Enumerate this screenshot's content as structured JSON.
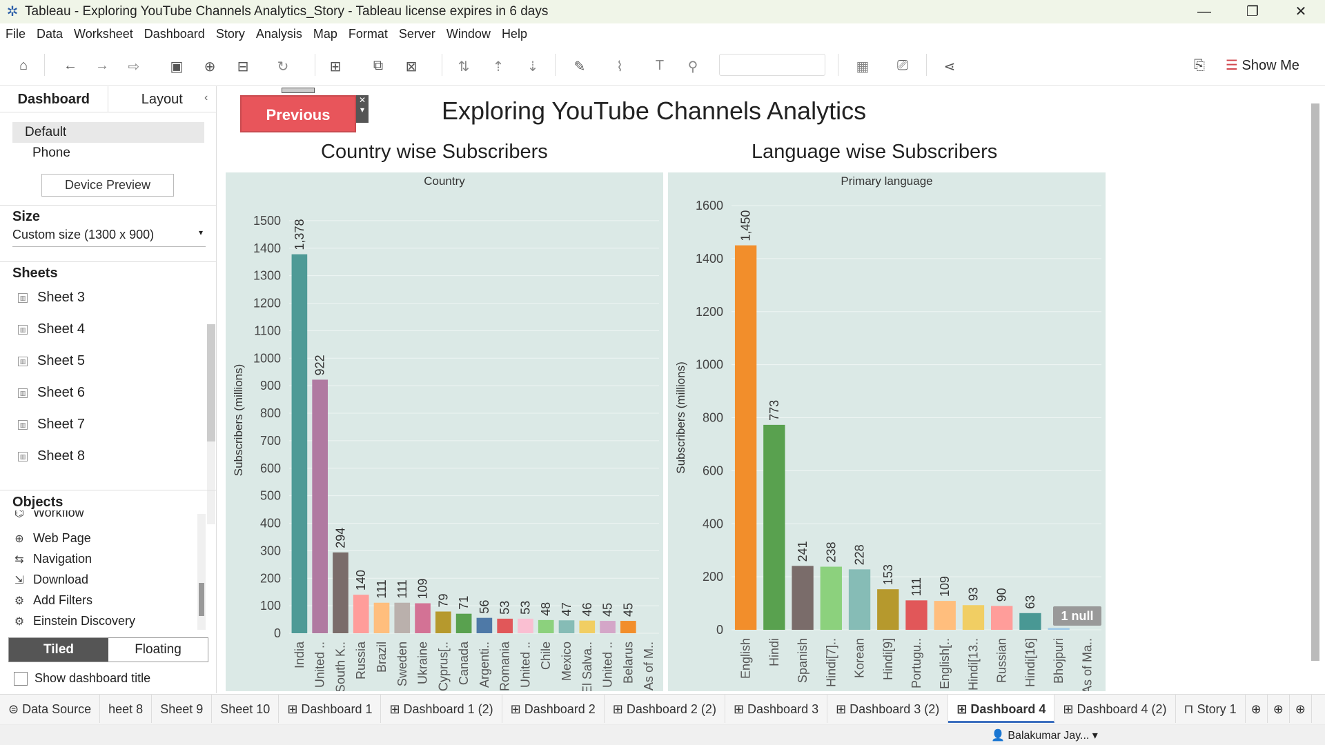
{
  "window": {
    "title": "Tableau - Exploring YouTube Channels Analytics_Story - Tableau license expires in 6 days"
  },
  "menu": [
    "File",
    "Data",
    "Worksheet",
    "Dashboard",
    "Story",
    "Analysis",
    "Map",
    "Format",
    "Server",
    "Window",
    "Help"
  ],
  "toolbar": {
    "show_me": "Show Me"
  },
  "left": {
    "tab_dashboard": "Dashboard",
    "tab_layout": "Layout",
    "device_default": "Default",
    "device_phone": "Phone",
    "device_preview": "Device Preview",
    "size_header": "Size",
    "size_value": "Custom size (1300 x 900)",
    "sheets_header": "Sheets",
    "sheets": [
      "Sheet 3",
      "Sheet 4",
      "Sheet 5",
      "Sheet 6",
      "Sheet 7",
      "Sheet 8"
    ],
    "objects_header": "Objects",
    "objects": [
      "Workflow",
      "Web Page",
      "Navigation",
      "Download",
      "Add Filters",
      "Einstein Discovery"
    ],
    "tiled": "Tiled",
    "floating": "Floating",
    "show_title": "Show dashboard title"
  },
  "dashboard": {
    "title": "Exploring YouTube Channels Analytics",
    "prev_button": "Previous",
    "chart1_title": "Country wise Subscribers",
    "chart2_title": "Language  wise  Subscribers"
  },
  "chart_data": [
    {
      "type": "bar",
      "title": "Country wise Subscribers",
      "header": "Country",
      "ylabel": "Subscribers (millions)",
      "ylim": [
        0,
        1550
      ],
      "yticks": [
        0,
        100,
        200,
        300,
        400,
        500,
        600,
        700,
        800,
        900,
        1000,
        1100,
        1200,
        1300,
        1400,
        1500
      ],
      "categories": [
        "India",
        "United ..",
        "South K..",
        "Russia",
        "Brazil",
        "Sweden",
        "Ukraine",
        "Cyprus[..",
        "Canada",
        "Argenti..",
        "Romania",
        "United ..",
        "Chile",
        "Mexico",
        "El Salva..",
        "United ..",
        "Belarus",
        "As of M.."
      ],
      "values": [
        1378,
        922,
        294,
        140,
        111,
        111,
        109,
        79,
        71,
        56,
        53,
        53,
        48,
        47,
        46,
        45,
        45,
        null
      ],
      "labels": [
        "1,378",
        "922",
        "294",
        "140",
        "111",
        "111",
        "109",
        "79",
        "71",
        "56",
        "53",
        "53",
        "48",
        "47",
        "46",
        "45",
        "45",
        ""
      ],
      "colors": [
        "#4e9a96",
        "#b07aa1",
        "#7a6c6a",
        "#ff9d9a",
        "#ffbe7d",
        "#bab0ac",
        "#d37295",
        "#b6992d",
        "#59a14f",
        "#4e79a7",
        "#e15759",
        "#fabfd2",
        "#8cd17d",
        "#86bcb6",
        "#f1ce63",
        "#d4a6c8",
        "#f28e2b",
        "#f28e2b"
      ]
    },
    {
      "type": "bar",
      "title": "Language  wise  Subscribers",
      "header": "Primary language",
      "ylabel": "Subscribers (millions)",
      "ylim": [
        0,
        1600
      ],
      "yticks": [
        0,
        200,
        400,
        600,
        800,
        1000,
        1200,
        1400,
        1600
      ],
      "categories": [
        "English",
        "Hindi",
        "Spanish",
        "Hindi[7]..",
        "Korean",
        "Hindi[9]",
        "Portugu..",
        "English[..",
        "Hindi[13..",
        "Russian",
        "Hindi[16]",
        "Bhojpuri",
        "As of Ma.."
      ],
      "values": [
        1450,
        773,
        241,
        238,
        228,
        153,
        111,
        109,
        93,
        90,
        63,
        7,
        null
      ],
      "labels": [
        "1,450",
        "773",
        "241",
        "238",
        "228",
        "153",
        "111",
        "109",
        "93",
        "90",
        "63",
        "7",
        ""
      ],
      "colors": [
        "#f28e2b",
        "#59a14f",
        "#7a6c6a",
        "#8cd17d",
        "#86bcb6",
        "#b6992d",
        "#e15759",
        "#ffbe7d",
        "#f1ce63",
        "#ff9d9a",
        "#499894",
        "#a0cbe8",
        "#a0cbe8"
      ],
      "null_badge": "1 null"
    }
  ],
  "sheet_tabs": [
    "Data Source",
    "heet 8",
    "Sheet 9",
    "Sheet 10",
    "Dashboard 1",
    "Dashboard 1 (2)",
    "Dashboard 2",
    "Dashboard 2 (2)",
    "Dashboard 3",
    "Dashboard 3 (2)",
    "Dashboard 4",
    "Dashboard 4 (2)",
    "Story 1"
  ],
  "active_tab": "Dashboard 4",
  "status": {
    "user": "Balakumar Jay..."
  }
}
